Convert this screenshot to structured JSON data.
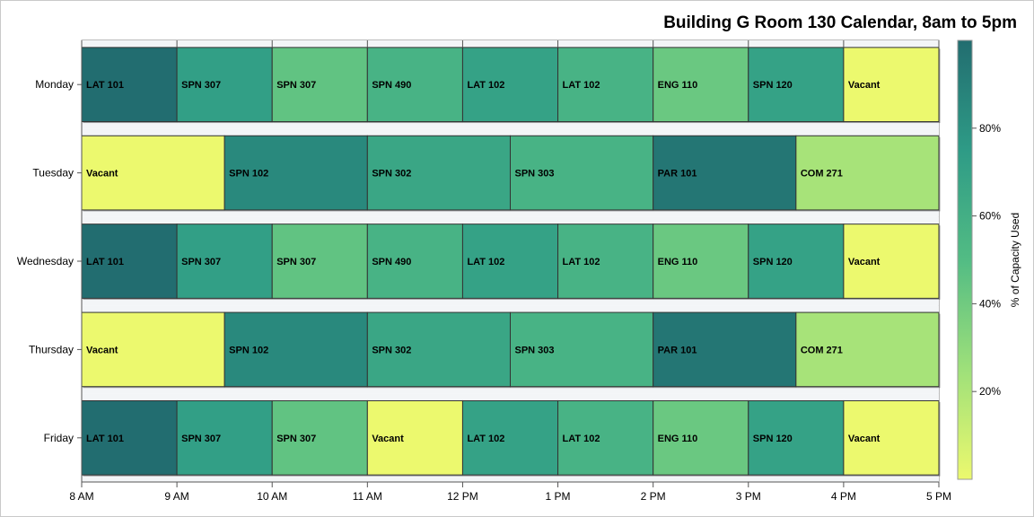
{
  "chart_data": {
    "type": "bar",
    "orientation": "horizontal-timeline",
    "title": "Building G Room 130 Calendar, 8am to 5pm",
    "xlabel": "",
    "ylabel": "",
    "x_ticks": [
      "8 AM",
      "9 AM",
      "10 AM",
      "11 AM",
      "12 PM",
      "1 PM",
      "2 PM",
      "3 PM",
      "4 PM",
      "5 PM"
    ],
    "xlim": [
      8,
      17
    ],
    "categories": [
      "Monday",
      "Tuesday",
      "Wednesday",
      "Thursday",
      "Friday"
    ],
    "colorbar": {
      "label": "% of Capacity Used",
      "range": [
        0,
        100
      ],
      "ticks": [
        "20%",
        "40%",
        "60%",
        "80%"
      ],
      "tick_values": [
        20,
        40,
        60,
        80
      ],
      "colors": [
        "#ecf96e",
        "#9ee07a",
        "#52bc84",
        "#2e9b86",
        "#226d70"
      ]
    },
    "legend_position": "right",
    "grid": false,
    "days": [
      {
        "day": "Monday",
        "events": [
          {
            "label": "LAT 101",
            "start": 8,
            "end": 9,
            "capacity": 100
          },
          {
            "label": "SPN 307",
            "start": 9,
            "end": 10,
            "capacity": 72
          },
          {
            "label": "SPN 307",
            "start": 10,
            "end": 11,
            "capacity": 45
          },
          {
            "label": "SPN 490",
            "start": 11,
            "end": 12,
            "capacity": 57
          },
          {
            "label": "LAT 102",
            "start": 12,
            "end": 13,
            "capacity": 70
          },
          {
            "label": "LAT 102",
            "start": 13,
            "end": 14,
            "capacity": 57
          },
          {
            "label": "ENG 110",
            "start": 14,
            "end": 15,
            "capacity": 42
          },
          {
            "label": "SPN 120",
            "start": 15,
            "end": 16,
            "capacity": 70
          },
          {
            "label": "Vacant",
            "start": 16,
            "end": 17,
            "capacity": 0
          }
        ]
      },
      {
        "day": "Tuesday",
        "events": [
          {
            "label": "Vacant",
            "start": 8,
            "end": 9.5,
            "capacity": 0
          },
          {
            "label": "SPN 102",
            "start": 9.5,
            "end": 11,
            "capacity": 85
          },
          {
            "label": "SPN 302",
            "start": 11,
            "end": 12.5,
            "capacity": 67
          },
          {
            "label": "SPN 303",
            "start": 12.5,
            "end": 14,
            "capacity": 57
          },
          {
            "label": "PAR 101",
            "start": 14,
            "end": 15.5,
            "capacity": 95
          },
          {
            "label": "COM 271",
            "start": 15.5,
            "end": 17,
            "capacity": 22
          }
        ]
      },
      {
        "day": "Wednesday",
        "events": [
          {
            "label": "LAT 101",
            "start": 8,
            "end": 9,
            "capacity": 100
          },
          {
            "label": "SPN 307",
            "start": 9,
            "end": 10,
            "capacity": 72
          },
          {
            "label": "SPN 307",
            "start": 10,
            "end": 11,
            "capacity": 45
          },
          {
            "label": "SPN 490",
            "start": 11,
            "end": 12,
            "capacity": 57
          },
          {
            "label": "LAT 102",
            "start": 12,
            "end": 13,
            "capacity": 70
          },
          {
            "label": "LAT 102",
            "start": 13,
            "end": 14,
            "capacity": 57
          },
          {
            "label": "ENG 110",
            "start": 14,
            "end": 15,
            "capacity": 42
          },
          {
            "label": "SPN 120",
            "start": 15,
            "end": 16,
            "capacity": 70
          },
          {
            "label": "Vacant",
            "start": 16,
            "end": 17,
            "capacity": 0
          }
        ]
      },
      {
        "day": "Thursday",
        "events": [
          {
            "label": "Vacant",
            "start": 8,
            "end": 9.5,
            "capacity": 0
          },
          {
            "label": "SPN 102",
            "start": 9.5,
            "end": 11,
            "capacity": 85
          },
          {
            "label": "SPN 302",
            "start": 11,
            "end": 12.5,
            "capacity": 67
          },
          {
            "label": "SPN 303",
            "start": 12.5,
            "end": 14,
            "capacity": 57
          },
          {
            "label": "PAR 101",
            "start": 14,
            "end": 15.5,
            "capacity": 95
          },
          {
            "label": "COM 271",
            "start": 15.5,
            "end": 17,
            "capacity": 22
          }
        ]
      },
      {
        "day": "Friday",
        "events": [
          {
            "label": "LAT 101",
            "start": 8,
            "end": 9,
            "capacity": 100
          },
          {
            "label": "SPN 307",
            "start": 9,
            "end": 10,
            "capacity": 72
          },
          {
            "label": "SPN 307",
            "start": 10,
            "end": 11,
            "capacity": 45
          },
          {
            "label": "Vacant",
            "start": 11,
            "end": 12,
            "capacity": 0
          },
          {
            "label": "LAT 102",
            "start": 12,
            "end": 13,
            "capacity": 70
          },
          {
            "label": "LAT 102",
            "start": 13,
            "end": 14,
            "capacity": 57
          },
          {
            "label": "ENG 110",
            "start": 14,
            "end": 15,
            "capacity": 42
          },
          {
            "label": "SPN 120",
            "start": 15,
            "end": 16,
            "capacity": 70
          },
          {
            "label": "Vacant",
            "start": 16,
            "end": 17,
            "capacity": 0
          }
        ]
      }
    ]
  }
}
